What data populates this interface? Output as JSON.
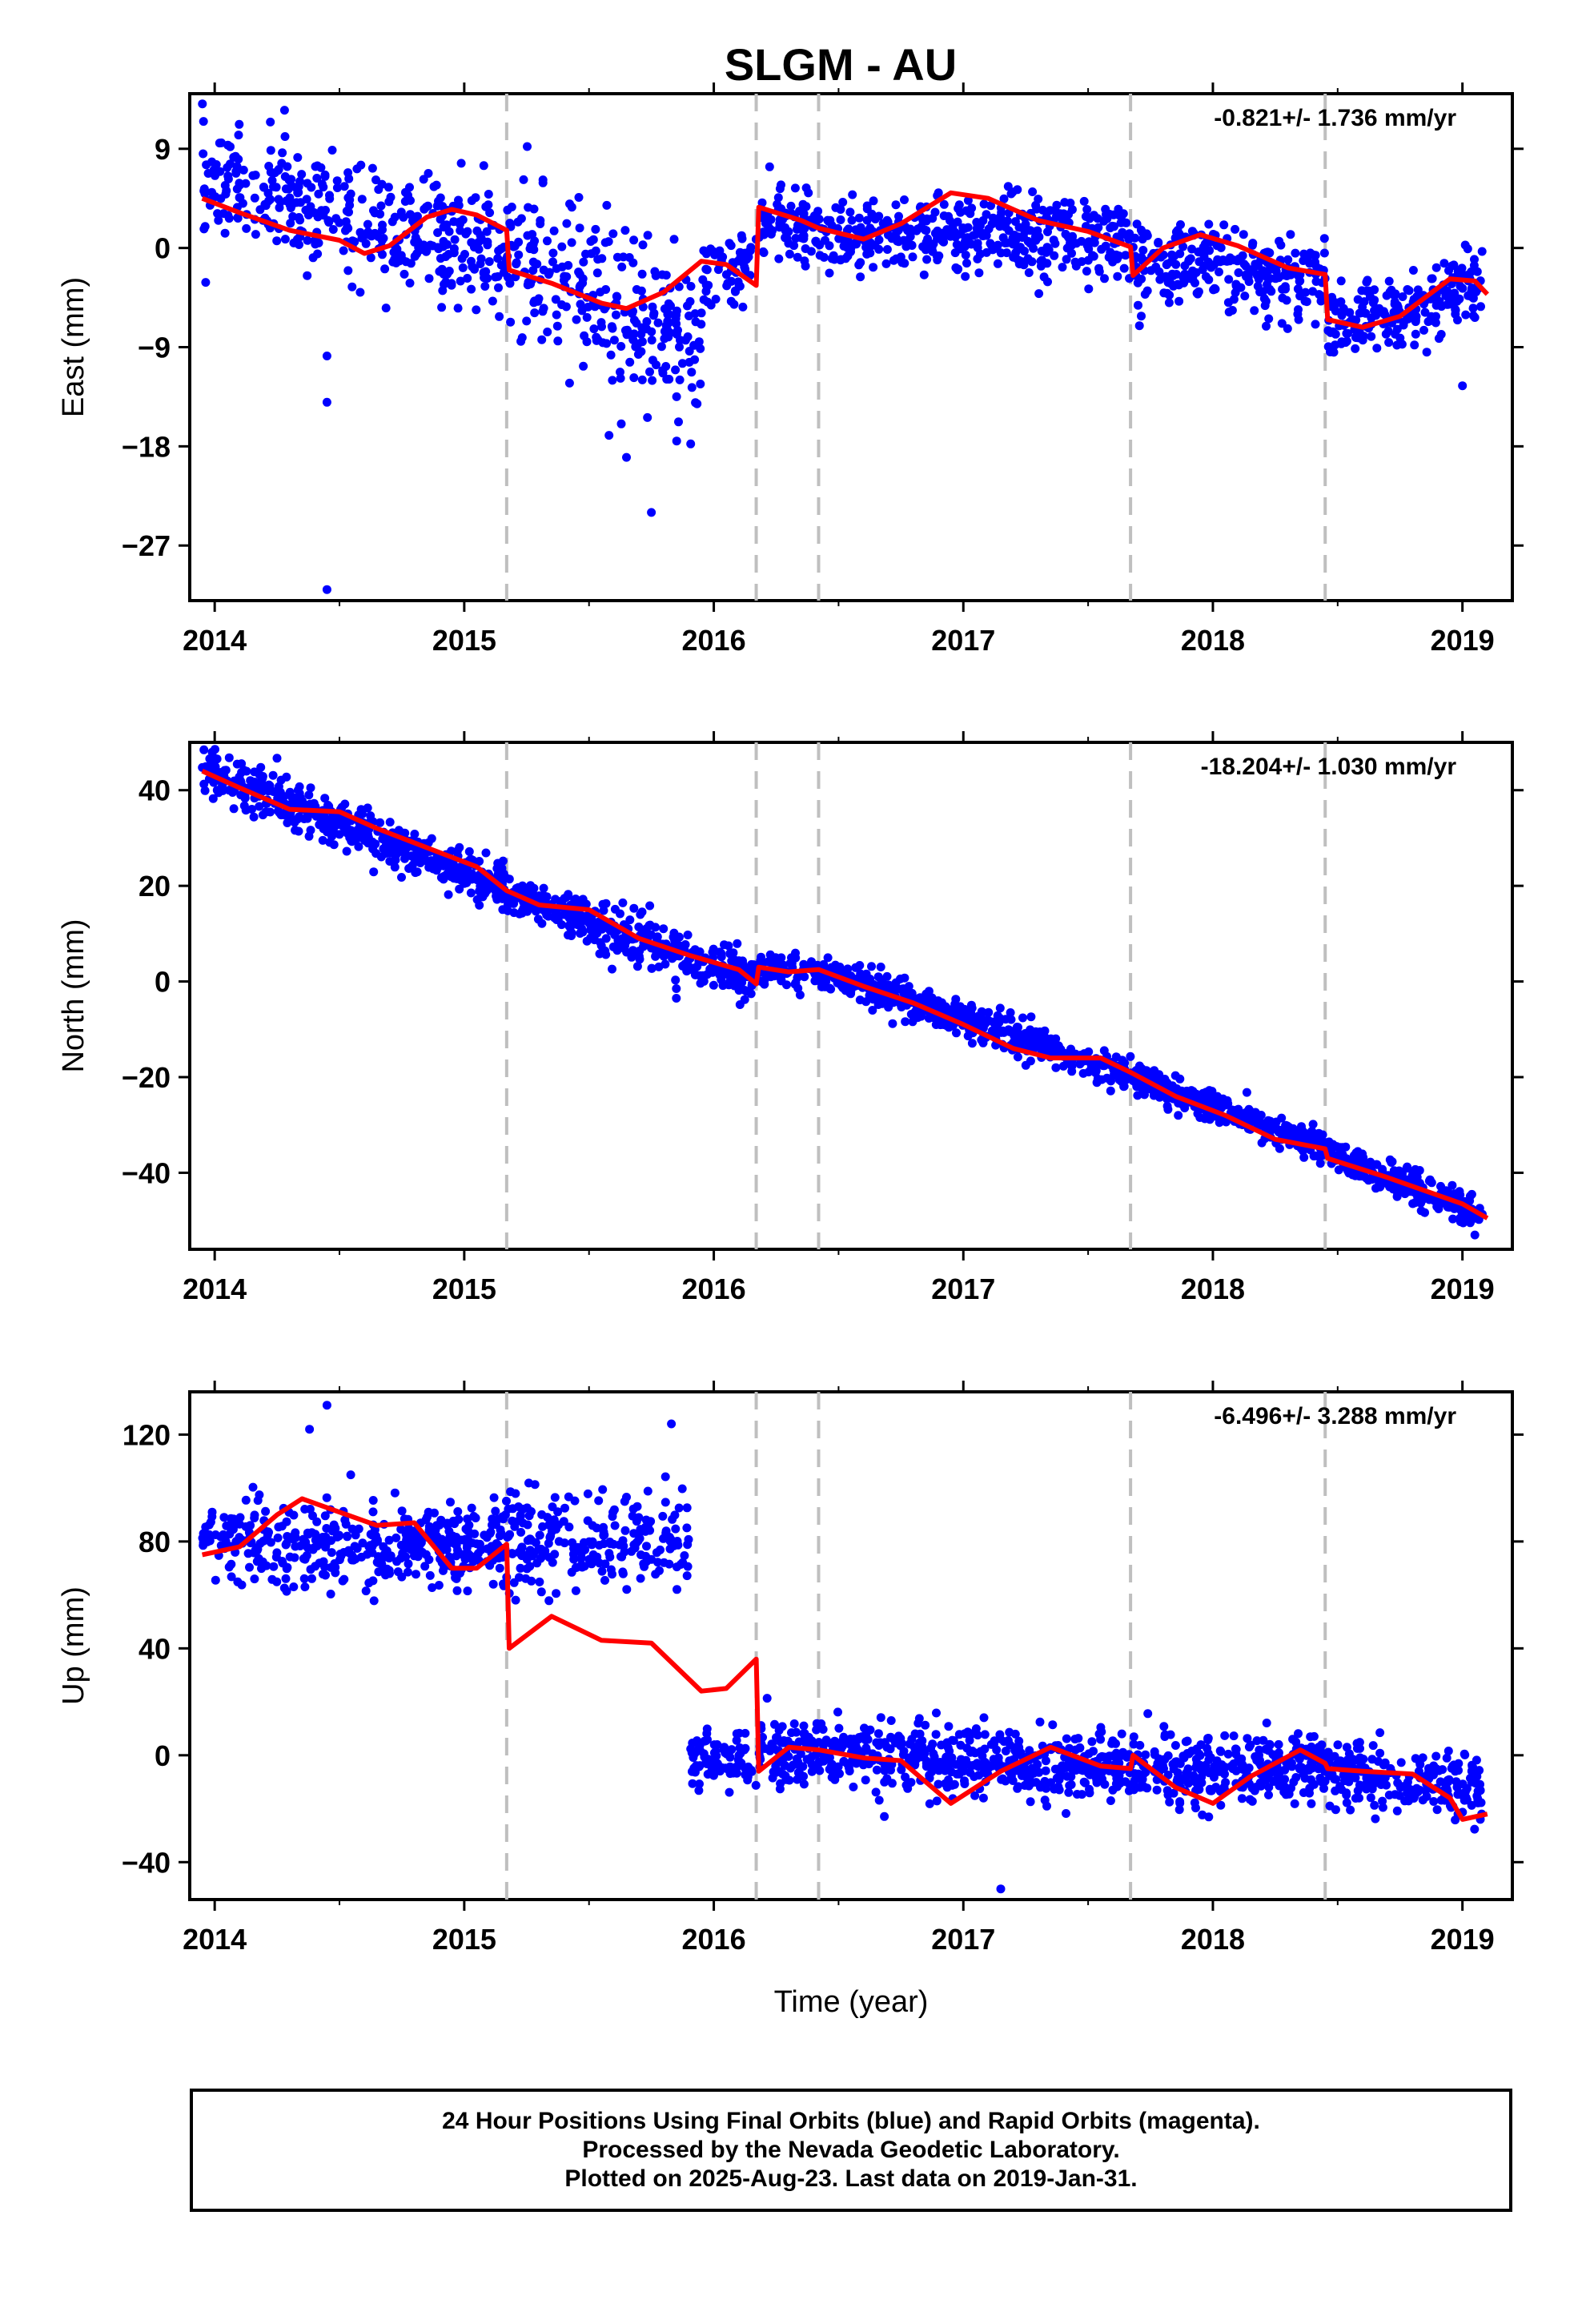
{
  "title": "SLGM - AU",
  "footer": {
    "line1": "24 Hour Positions Using Final Orbits (blue) and Rapid Orbits (magenta).",
    "line2": "Processed by the Nevada Geodetic Laboratory.",
    "line3": "Plotted on 2025-Aug-23. Last data on 2019-Jan-31."
  },
  "colors": {
    "points": "#0000ff",
    "model": "#ff0000",
    "breaks": "#bfbfbf"
  },
  "chart_data": [
    {
      "type": "scatter",
      "ylabel": "East (mm)",
      "xlim": [
        2013.9,
        2019.2
      ],
      "ylim": [
        -32,
        14
      ],
      "yticks": [
        9,
        0,
        -9,
        -18,
        -27
      ],
      "xticks": [
        2014,
        2015,
        2016,
        2017,
        2018,
        2019
      ],
      "rate_text": "-0.821+/- 1.736 mm/yr",
      "breaks": [
        2015.17,
        2016.17,
        2016.42,
        2017.67,
        2018.45
      ],
      "model_points": [
        [
          2013.95,
          4.5
        ],
        [
          2014.1,
          3.2
        ],
        [
          2014.3,
          1.6
        ],
        [
          2014.5,
          0.7
        ],
        [
          2014.6,
          -0.5
        ],
        [
          2014.7,
          0.2
        ],
        [
          2014.85,
          2.8
        ],
        [
          2014.95,
          3.5
        ],
        [
          2015.05,
          3.0
        ],
        [
          2015.17,
          1.6
        ],
        [
          2015.18,
          -2.0
        ],
        [
          2015.35,
          -3.2
        ],
        [
          2015.55,
          -5.0
        ],
        [
          2015.65,
          -5.5
        ],
        [
          2015.8,
          -4.0
        ],
        [
          2015.95,
          -1.2
        ],
        [
          2016.05,
          -1.5
        ],
        [
          2016.17,
          -3.4
        ],
        [
          2016.18,
          3.7
        ],
        [
          2016.35,
          2.5
        ],
        [
          2016.42,
          1.8
        ],
        [
          2016.6,
          0.8
        ],
        [
          2016.75,
          2.2
        ],
        [
          2016.95,
          5.0
        ],
        [
          2017.1,
          4.5
        ],
        [
          2017.3,
          2.5
        ],
        [
          2017.5,
          1.5
        ],
        [
          2017.67,
          0.1
        ],
        [
          2017.68,
          -2.5
        ],
        [
          2017.8,
          0.0
        ],
        [
          2017.95,
          1.2
        ],
        [
          2018.1,
          0.2
        ],
        [
          2018.3,
          -1.8
        ],
        [
          2018.45,
          -2.4
        ],
        [
          2018.46,
          -6.5
        ],
        [
          2018.6,
          -7.2
        ],
        [
          2018.75,
          -6.2
        ],
        [
          2018.95,
          -2.8
        ],
        [
          2019.05,
          -3.0
        ],
        [
          2019.1,
          -4.2
        ]
      ],
      "trend_segments": [
        {
          "start": [
            2013.95,
            6.0
          ],
          "end": [
            2015.17,
            -0.5
          ],
          "noise": 2.6,
          "n": 380
        },
        {
          "start": [
            2015.17,
            -1.0
          ],
          "end": [
            2015.95,
            -9.0
          ],
          "noise": 3.6,
          "n": 260
        },
        {
          "start": [
            2015.95,
            -3.0
          ],
          "end": [
            2016.17,
            -1.0
          ],
          "noise": 1.6,
          "n": 60
        },
        {
          "start": [
            2016.18,
            2.5
          ],
          "end": [
            2016.42,
            1.5
          ],
          "noise": 1.6,
          "n": 80
        },
        {
          "start": [
            2016.42,
            1.0
          ],
          "end": [
            2017.67,
            1.0
          ],
          "noise": 1.8,
          "n": 420
        },
        {
          "start": [
            2017.68,
            -1.0
          ],
          "end": [
            2018.45,
            -3.0
          ],
          "noise": 1.8,
          "n": 260
        },
        {
          "start": [
            2018.46,
            -7.0
          ],
          "end": [
            2019.08,
            -3.5
          ],
          "noise": 1.6,
          "n": 210
        }
      ],
      "outliers": [
        [
          2014.45,
          -31.0
        ],
        [
          2015.75,
          -24.0
        ],
        [
          2014.45,
          -14.0
        ],
        [
          2014.45,
          -9.8
        ],
        [
          2019.0,
          -12.5
        ],
        [
          2014.28,
          12.5
        ],
        [
          2015.65,
          -19.0
        ],
        [
          2015.58,
          -17.0
        ]
      ]
    },
    {
      "type": "scatter",
      "ylabel": "North (mm)",
      "xlim": [
        2013.9,
        2019.2
      ],
      "ylim": [
        -56,
        50
      ],
      "yticks": [
        40,
        20,
        0,
        -20,
        -40
      ],
      "xticks": [
        2014,
        2015,
        2016,
        2017,
        2018,
        2019
      ],
      "rate_text": "-18.204+/- 1.030 mm/yr",
      "breaks": [
        2015.17,
        2016.17,
        2016.42,
        2017.67,
        2018.45
      ],
      "model_points": [
        [
          2013.95,
          44.0
        ],
        [
          2014.1,
          40.5
        ],
        [
          2014.3,
          36.0
        ],
        [
          2014.5,
          35.5
        ],
        [
          2014.65,
          32.0
        ],
        [
          2014.85,
          28.0
        ],
        [
          2015.05,
          24.0
        ],
        [
          2015.17,
          19.0
        ],
        [
          2015.3,
          16.0
        ],
        [
          2015.5,
          15.0
        ],
        [
          2015.7,
          9.0
        ],
        [
          2015.9,
          5.5
        ],
        [
          2016.1,
          2.5
        ],
        [
          2016.17,
          -0.5
        ],
        [
          2016.18,
          3.0
        ],
        [
          2016.3,
          2.0
        ],
        [
          2016.42,
          2.5
        ],
        [
          2016.6,
          -1.0
        ],
        [
          2016.8,
          -4.5
        ],
        [
          2017.0,
          -9.0
        ],
        [
          2017.2,
          -14.0
        ],
        [
          2017.35,
          -16.0
        ],
        [
          2017.55,
          -16.0
        ],
        [
          2017.67,
          -19.0
        ],
        [
          2017.85,
          -24.0
        ],
        [
          2018.05,
          -28.0
        ],
        [
          2018.25,
          -33.0
        ],
        [
          2018.45,
          -35.0
        ],
        [
          2018.46,
          -37.0
        ],
        [
          2018.7,
          -41.0
        ],
        [
          2019.0,
          -46.5
        ],
        [
          2019.1,
          -49.5
        ]
      ],
      "trend_segments": [
        {
          "start": [
            2013.95,
            44.5
          ],
          "end": [
            2015.17,
            19.0
          ],
          "noise": 2.2,
          "n": 520
        },
        {
          "start": [
            2015.17,
            18.0
          ],
          "end": [
            2016.17,
            0.0
          ],
          "noise": 2.6,
          "n": 380
        },
        {
          "start": [
            2016.18,
            2.5
          ],
          "end": [
            2016.42,
            2.0
          ],
          "noise": 1.5,
          "n": 70
        },
        {
          "start": [
            2016.42,
            2.5
          ],
          "end": [
            2017.67,
            -19.5
          ],
          "noise": 1.8,
          "n": 480
        },
        {
          "start": [
            2017.68,
            -20.0
          ],
          "end": [
            2018.45,
            -35.0
          ],
          "noise": 1.6,
          "n": 320
        },
        {
          "start": [
            2018.46,
            -36.0
          ],
          "end": [
            2019.08,
            -49.0
          ],
          "noise": 1.7,
          "n": 240
        }
      ],
      "outliers": [
        [
          2015.85,
          -3.5
        ],
        [
          2019.05,
          -53.0
        ],
        [
          2015.85,
          -1.5
        ]
      ]
    },
    {
      "type": "scatter",
      "ylabel": "Up (mm)",
      "xlabel": "Time (year)",
      "xlim": [
        2013.9,
        2019.2
      ],
      "ylim": [
        -54,
        136
      ],
      "yticks": [
        120,
        80,
        40,
        0,
        -40
      ],
      "xticks": [
        2014,
        2015,
        2016,
        2017,
        2018,
        2019
      ],
      "rate_text": "-6.496+/- 3.288 mm/yr",
      "breaks": [
        2015.17,
        2016.17,
        2016.42,
        2017.67,
        2018.45
      ],
      "model_points": [
        [
          2013.95,
          75.0
        ],
        [
          2014.1,
          78.0
        ],
        [
          2014.25,
          90.0
        ],
        [
          2014.35,
          96.0
        ],
        [
          2014.5,
          91.0
        ],
        [
          2014.65,
          86.0
        ],
        [
          2014.8,
          87.0
        ],
        [
          2014.95,
          70.0
        ],
        [
          2015.05,
          70.0
        ],
        [
          2015.17,
          79.0
        ],
        [
          2015.18,
          40.0
        ],
        [
          2015.35,
          52.0
        ],
        [
          2015.55,
          43.0
        ],
        [
          2015.75,
          42.0
        ],
        [
          2015.95,
          24.0
        ],
        [
          2016.05,
          25.0
        ],
        [
          2016.17,
          36.0
        ],
        [
          2016.18,
          -6.0
        ],
        [
          2016.3,
          3.0
        ],
        [
          2016.42,
          2.0
        ],
        [
          2016.6,
          -1.0
        ],
        [
          2016.75,
          -2.0
        ],
        [
          2016.95,
          -18.0
        ],
        [
          2017.15,
          -6.0
        ],
        [
          2017.35,
          3.0
        ],
        [
          2017.55,
          -4.0
        ],
        [
          2017.67,
          -5.0
        ],
        [
          2017.68,
          0.0
        ],
        [
          2017.85,
          -12.0
        ],
        [
          2018.0,
          -18.0
        ],
        [
          2018.15,
          -8.0
        ],
        [
          2018.35,
          2.0
        ],
        [
          2018.45,
          -3.0
        ],
        [
          2018.46,
          -5.0
        ],
        [
          2018.6,
          -6.0
        ],
        [
          2018.8,
          -7.0
        ],
        [
          2018.95,
          -16.0
        ],
        [
          2019.0,
          -24.0
        ],
        [
          2019.1,
          -22.0
        ]
      ],
      "trend_segments": [
        {
          "start": [
            2013.95,
            80.0
          ],
          "end": [
            2015.17,
            78.0
          ],
          "noise": 8.0,
          "n": 420
        },
        {
          "start": [
            2015.17,
            80.0
          ],
          "end": [
            2015.9,
            80.0
          ],
          "noise": 10.0,
          "n": 220
        },
        {
          "start": [
            2015.9,
            0.0
          ],
          "end": [
            2016.17,
            -2.0
          ],
          "noise": 5.5,
          "n": 90
        },
        {
          "start": [
            2016.18,
            2.0
          ],
          "end": [
            2017.67,
            -5.0
          ],
          "noise": 6.0,
          "n": 560
        },
        {
          "start": [
            2017.68,
            -5.0
          ],
          "end": [
            2018.45,
            -3.0
          ],
          "noise": 6.0,
          "n": 300
        },
        {
          "start": [
            2018.46,
            -6.0
          ],
          "end": [
            2019.08,
            -14.0
          ],
          "noise": 6.0,
          "n": 220
        }
      ],
      "outliers": [
        [
          2014.45,
          131.0
        ],
        [
          2014.38,
          122.0
        ],
        [
          2015.83,
          124.0
        ],
        [
          2017.15,
          -50.0
        ]
      ]
    }
  ]
}
